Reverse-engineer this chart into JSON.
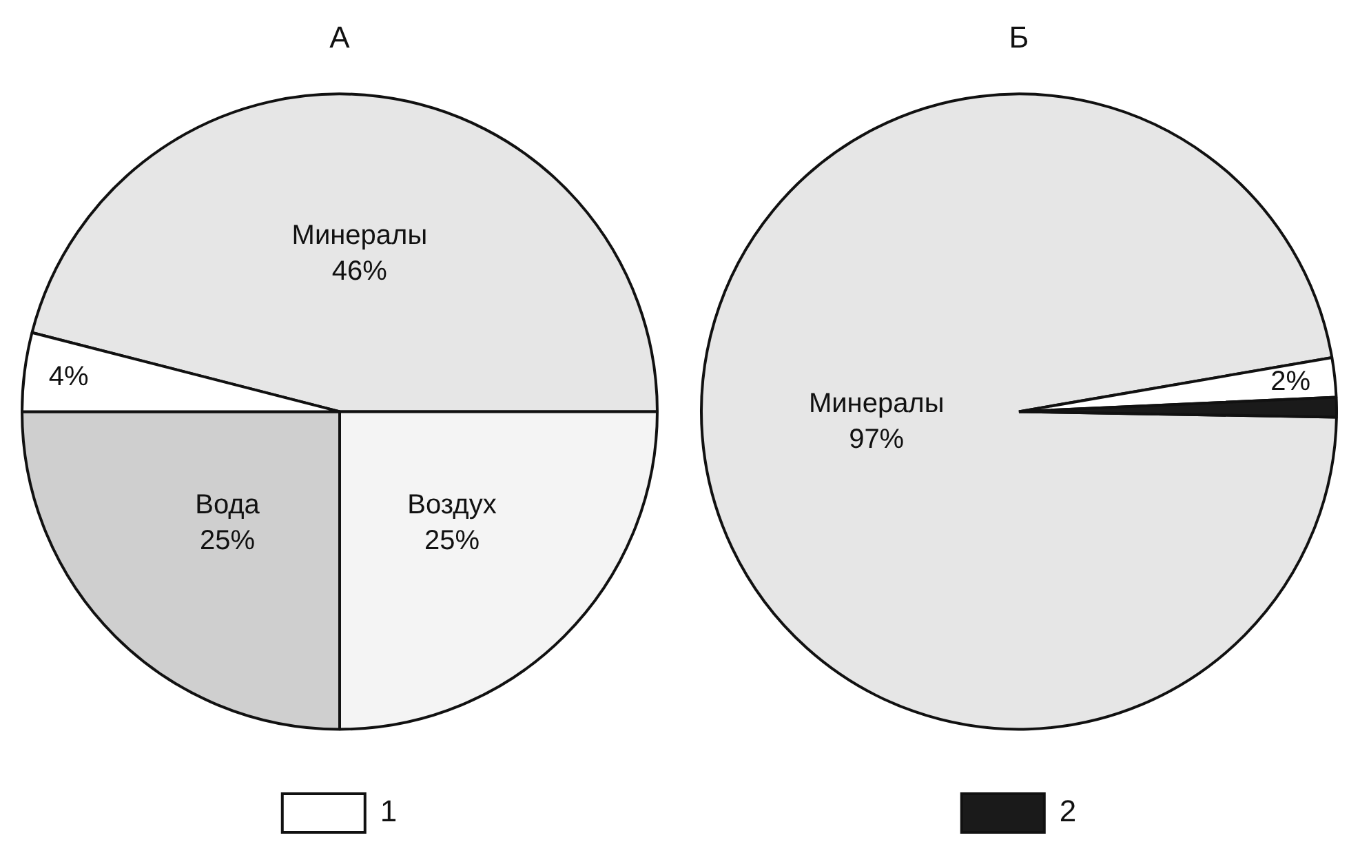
{
  "chart_data": [
    {
      "type": "pie",
      "title": "А",
      "categories": [
        null,
        null,
        null,
        "1"
      ],
      "values": [
        46,
        25,
        25,
        4
      ],
      "colors": [
        "#e6e6e6",
        "#f4f4f4",
        "#cfcfcf",
        "#ffffff"
      ],
      "value_labels": [
        "Минералы\n46%",
        "Воздух\n25%",
        "Вода\n25%",
        "4%"
      ],
      "legend": "bottom"
    },
    {
      "type": "pie",
      "title": "Б",
      "categories": [
        null,
        null,
        "2"
      ],
      "values": [
        97,
        2,
        1
      ],
      "colors": [
        "#e6e6e6",
        "#ffffff",
        "#1a1a1a"
      ],
      "value_labels": [
        "Минералы\n97%",
        "2%",
        null
      ],
      "legend": "bottom"
    }
  ]
}
